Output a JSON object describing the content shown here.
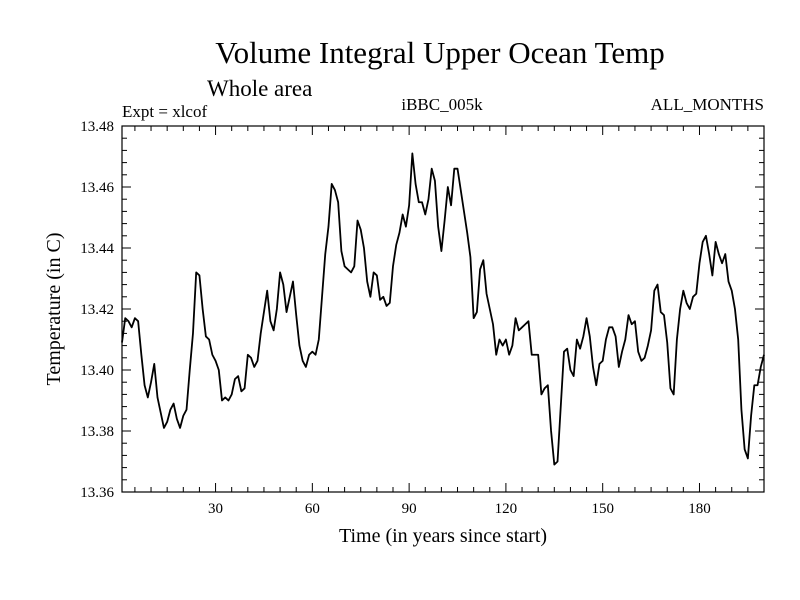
{
  "chart_data": {
    "type": "line",
    "title": "Volume Integral Upper Ocean Temp",
    "subtitle": "Whole area",
    "annotations": {
      "left": "Expt = xlcof",
      "center": "iBBC_005k",
      "right": "ALL_MONTHS"
    },
    "xlabel": "Time (in years since start)",
    "ylabel": "Temperature (in C)",
    "xlim": [
      1,
      200
    ],
    "ylim": [
      13.36,
      13.48
    ],
    "xticks": [
      30,
      60,
      90,
      120,
      150,
      180
    ],
    "xtick_labels": [
      "30",
      "60",
      "90",
      "120",
      "150",
      "180"
    ],
    "yticks": [
      13.36,
      13.38,
      13.4,
      13.42,
      13.44,
      13.46,
      13.48
    ],
    "ytick_labels": [
      "13.36",
      "13.38",
      "13.40",
      "13.42",
      "13.44",
      "13.46",
      "13.48"
    ],
    "line_color": "#000000",
    "series": [
      {
        "name": "iBBC_005k",
        "x": [
          1,
          2,
          3,
          4,
          5,
          6,
          7,
          8,
          9,
          10,
          11,
          12,
          13,
          14,
          15,
          16,
          17,
          18,
          19,
          20,
          21,
          22,
          23,
          24,
          25,
          26,
          27,
          28,
          29,
          30,
          31,
          32,
          33,
          34,
          35,
          36,
          37,
          38,
          39,
          40,
          41,
          42,
          43,
          44,
          45,
          46,
          47,
          48,
          49,
          50,
          51,
          52,
          53,
          54,
          55,
          56,
          57,
          58,
          59,
          60,
          61,
          62,
          63,
          64,
          65,
          66,
          67,
          68,
          69,
          70,
          71,
          72,
          73,
          74,
          75,
          76,
          77,
          78,
          79,
          80,
          81,
          82,
          83,
          84,
          85,
          86,
          87,
          88,
          89,
          90,
          91,
          92,
          93,
          94,
          95,
          96,
          97,
          98,
          99,
          100,
          101,
          102,
          103,
          104,
          105,
          106,
          107,
          108,
          109,
          110,
          111,
          112,
          113,
          114,
          115,
          116,
          117,
          118,
          119,
          120,
          121,
          122,
          123,
          124,
          125,
          126,
          127,
          128,
          129,
          130,
          131,
          132,
          133,
          134,
          135,
          136,
          137,
          138,
          139,
          140,
          141,
          142,
          143,
          144,
          145,
          146,
          147,
          148,
          149,
          150,
          151,
          152,
          153,
          154,
          155,
          156,
          157,
          158,
          159,
          160,
          161,
          162,
          163,
          164,
          165,
          166,
          167,
          168,
          169,
          170,
          171,
          172,
          173,
          174,
          175,
          176,
          177,
          178,
          179,
          180,
          181,
          182,
          183,
          184,
          185,
          186,
          187,
          188,
          189,
          190,
          191,
          192,
          193,
          194,
          195,
          196,
          197,
          198,
          199,
          200
        ],
        "values": [
          13.409,
          13.417,
          13.416,
          13.414,
          13.417,
          13.416,
          13.405,
          13.395,
          13.391,
          13.396,
          13.402,
          13.391,
          13.386,
          13.381,
          13.383,
          13.387,
          13.389,
          13.384,
          13.381,
          13.385,
          13.387,
          13.4,
          13.412,
          13.432,
          13.431,
          13.42,
          13.411,
          13.41,
          13.405,
          13.403,
          13.4,
          13.39,
          13.391,
          13.39,
          13.392,
          13.397,
          13.398,
          13.393,
          13.394,
          13.405,
          13.404,
          13.401,
          13.403,
          13.412,
          13.419,
          13.426,
          13.416,
          13.413,
          13.42,
          13.432,
          13.428,
          13.419,
          13.424,
          13.429,
          13.418,
          13.408,
          13.403,
          13.401,
          13.405,
          13.406,
          13.405,
          13.41,
          13.424,
          13.438,
          13.447,
          13.461,
          13.459,
          13.455,
          13.439,
          13.434,
          13.433,
          13.432,
          13.434,
          13.449,
          13.446,
          13.44,
          13.429,
          13.424,
          13.432,
          13.431,
          13.423,
          13.424,
          13.421,
          13.422,
          13.434,
          13.441,
          13.445,
          13.451,
          13.447,
          13.454,
          13.471,
          13.461,
          13.455,
          13.455,
          13.451,
          13.456,
          13.466,
          13.462,
          13.447,
          13.439,
          13.449,
          13.46,
          13.454,
          13.466,
          13.466,
          13.459,
          13.452,
          13.445,
          13.437,
          13.417,
          13.419,
          13.433,
          13.436,
          13.425,
          13.42,
          13.415,
          13.405,
          13.41,
          13.408,
          13.41,
          13.405,
          13.408,
          13.417,
          13.413,
          13.414,
          13.415,
          13.416,
          13.405,
          13.405,
          13.405,
          13.392,
          13.394,
          13.395,
          13.38,
          13.369,
          13.37,
          13.388,
          13.406,
          13.407,
          13.4,
          13.398,
          13.41,
          13.407,
          13.411,
          13.417,
          13.411,
          13.401,
          13.395,
          13.402,
          13.403,
          13.41,
          13.414,
          13.414,
          13.411,
          13.401,
          13.406,
          13.41,
          13.418,
          13.415,
          13.416,
          13.406,
          13.403,
          13.404,
          13.408,
          13.413,
          13.426,
          13.428,
          13.419,
          13.418,
          13.409,
          13.394,
          13.392,
          13.41,
          13.42,
          13.426,
          13.422,
          13.42,
          13.424,
          13.425,
          13.435,
          13.442,
          13.444,
          13.438,
          13.431,
          13.442,
          13.438,
          13.435,
          13.438,
          13.429,
          13.426,
          13.42,
          13.41,
          13.387,
          13.374,
          13.371,
          13.385,
          13.395,
          13.395,
          13.401,
          13.405
        ]
      }
    ]
  }
}
